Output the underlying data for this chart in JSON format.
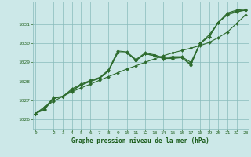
{
  "title": "Graphe pression niveau de la mer (hPa)",
  "background_color": "#cce8e8",
  "grid_color": "#88bbbb",
  "line_color": "#2d6b2d",
  "marker_color": "#2d6b2d",
  "xlabel_color": "#1a5c1a",
  "ylim": [
    1025.5,
    1032.2
  ],
  "xlim": [
    -0.3,
    23.3
  ],
  "yticks": [
    1026,
    1027,
    1028,
    1029,
    1030,
    1031
  ],
  "xticks": [
    0,
    2,
    3,
    4,
    5,
    6,
    7,
    8,
    9,
    10,
    11,
    12,
    13,
    14,
    15,
    16,
    17,
    18,
    19,
    20,
    21,
    22,
    23
  ],
  "line1": [
    1026.3,
    1026.5,
    1027.1,
    1027.2,
    1027.5,
    1027.8,
    1028.0,
    1028.15,
    1028.55,
    1029.5,
    1029.5,
    1029.1,
    1029.45,
    1029.35,
    1029.2,
    1029.25,
    1029.25,
    1028.9,
    1030.0,
    1030.35,
    1031.1,
    1031.55,
    1031.7,
    1031.75
  ],
  "line2": [
    1026.3,
    1026.55,
    1027.1,
    1027.2,
    1027.55,
    1027.8,
    1028.0,
    1028.15,
    1028.55,
    1029.5,
    1029.5,
    1029.1,
    1029.45,
    1029.35,
    1029.2,
    1029.2,
    1029.25,
    1028.85,
    1030.0,
    1030.35,
    1031.1,
    1031.5,
    1031.65,
    1031.75
  ],
  "line3": [
    1026.3,
    1026.6,
    1027.15,
    1027.2,
    1027.6,
    1027.85,
    1028.05,
    1028.2,
    1028.6,
    1029.6,
    1029.55,
    1029.15,
    1029.5,
    1029.4,
    1029.25,
    1029.3,
    1029.3,
    1029.0,
    1030.0,
    1030.45,
    1031.1,
    1031.6,
    1031.75,
    1031.8
  ],
  "line_straight": [
    1026.3,
    1026.65,
    1026.95,
    1027.2,
    1027.45,
    1027.65,
    1027.85,
    1028.05,
    1028.25,
    1028.45,
    1028.65,
    1028.82,
    1029.0,
    1029.18,
    1029.35,
    1029.5,
    1029.62,
    1029.75,
    1029.88,
    1030.05,
    1030.3,
    1030.6,
    1031.05,
    1031.5
  ]
}
